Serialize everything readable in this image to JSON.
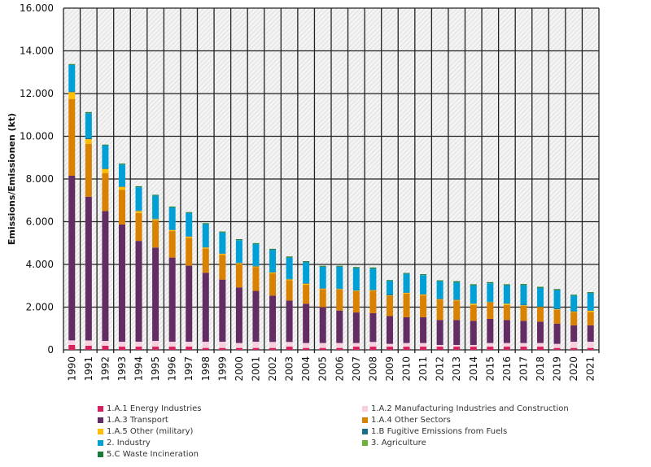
{
  "chart_data": {
    "type": "bar",
    "stacked": true,
    "title": "",
    "xlabel": "",
    "ylabel": "Emissions/Emissionen (kt)",
    "ylim": [
      0,
      16000
    ],
    "yticks": [
      "0",
      "2.000",
      "4.000",
      "6.000",
      "8.000",
      "10.000",
      "12.000",
      "14.000",
      "16.000"
    ],
    "ytick_values": [
      0,
      2000,
      4000,
      6000,
      8000,
      10000,
      12000,
      14000,
      16000
    ],
    "grid": true,
    "legend_position": "bottom",
    "categories": [
      "1990",
      "1991",
      "1992",
      "1993",
      "1994",
      "1995",
      "1996",
      "1997",
      "1998",
      "1999",
      "2000",
      "2001",
      "2002",
      "2003",
      "2004",
      "2005",
      "2006",
      "2007",
      "2008",
      "2009",
      "2010",
      "2011",
      "2012",
      "2013",
      "2014",
      "2015",
      "2016",
      "2017",
      "2018",
      "2019",
      "2020",
      "2021"
    ],
    "series": [
      {
        "name": "1.A.1 Energy Industries",
        "color": "#d6215b",
        "values": [
          230,
          190,
          190,
          150,
          150,
          150,
          150,
          150,
          90,
          90,
          90,
          90,
          90,
          150,
          90,
          90,
          90,
          150,
          150,
          150,
          150,
          150,
          150,
          150,
          150,
          150,
          150,
          150,
          150,
          90,
          90,
          90
        ]
      },
      {
        "name": "1.A.2 Manufacturing Industries and Construction",
        "color": "#f7cfe0",
        "values": [
          215,
          250,
          230,
          230,
          230,
          270,
          230,
          230,
          290,
          290,
          230,
          290,
          280,
          220,
          230,
          230,
          230,
          170,
          220,
          130,
          170,
          170,
          80,
          80,
          80,
          170,
          170,
          170,
          170,
          190,
          290,
          290
        ]
      },
      {
        "name": "1.A.3 Transport",
        "color": "#632c63",
        "values": [
          7710,
          6730,
          6080,
          5490,
          4720,
          4370,
          3940,
          3560,
          3230,
          2910,
          2600,
          2380,
          2170,
          1940,
          1840,
          1680,
          1520,
          1430,
          1350,
          1300,
          1210,
          1210,
          1170,
          1170,
          1130,
          1130,
          1080,
          1040,
          1000,
          950,
          770,
          770
        ]
      },
      {
        "name": "1.A.4 Other Sectors",
        "color": "#d98100",
        "values": [
          3590,
          2480,
          1780,
          1630,
          1310,
          1280,
          1240,
          1310,
          1130,
          1160,
          1100,
          1120,
          1040,
          950,
          890,
          840,
          980,
          1000,
          1050,
          950,
          1100,
          1020,
          950,
          910,
          740,
          760,
          700,
          710,
          670,
          650,
          620,
          630
        ]
      },
      {
        "name": "1.A.5 Other (military)",
        "color": "#ffbf00",
        "values": [
          320,
          215,
          190,
          130,
          90,
          50,
          50,
          50,
          50,
          50,
          40,
          25,
          40,
          40,
          50,
          25,
          25,
          25,
          25,
          20,
          40,
          40,
          20,
          25,
          60,
          20,
          60,
          20,
          20,
          20,
          20,
          50
        ]
      },
      {
        "name": "1.B Fugitive Emissions from Fuels",
        "color": "#1a6e86",
        "values": [
          40,
          40,
          25,
          25,
          25,
          25,
          25,
          25,
          25,
          25,
          25,
          25,
          25,
          25,
          25,
          25,
          25,
          25,
          25,
          40,
          25,
          25,
          40,
          25,
          25,
          25,
          25,
          25,
          25,
          50,
          25,
          25
        ]
      },
      {
        "name": "2. Industry",
        "color": "#009fd6",
        "values": [
          1230,
          1170,
          1070,
          1020,
          1090,
          1070,
          1030,
          1080,
          1070,
          970,
          1050,
          1020,
          1040,
          990,
          970,
          1000,
          1020,
          1020,
          980,
          630,
          860,
          880,
          800,
          800,
          830,
          860,
          830,
          910,
          860,
          840,
          720,
          790
        ]
      },
      {
        "name": "3. Agriculture",
        "color": "#6ab23a",
        "values": [
          5,
          5,
          5,
          5,
          5,
          5,
          5,
          5,
          5,
          5,
          5,
          5,
          5,
          5,
          5,
          5,
          5,
          5,
          5,
          5,
          5,
          5,
          5,
          5,
          5,
          5,
          5,
          5,
          5,
          5,
          5,
          5
        ]
      },
      {
        "name": "5.C Waste Incineration",
        "color": "#1a7a3a",
        "values": [
          40,
          50,
          40,
          40,
          40,
          40,
          40,
          40,
          40,
          40,
          40,
          40,
          40,
          50,
          50,
          40,
          40,
          50,
          50,
          40,
          40,
          40,
          40,
          50,
          50,
          50,
          50,
          50,
          50,
          50,
          40,
          50
        ]
      }
    ]
  }
}
